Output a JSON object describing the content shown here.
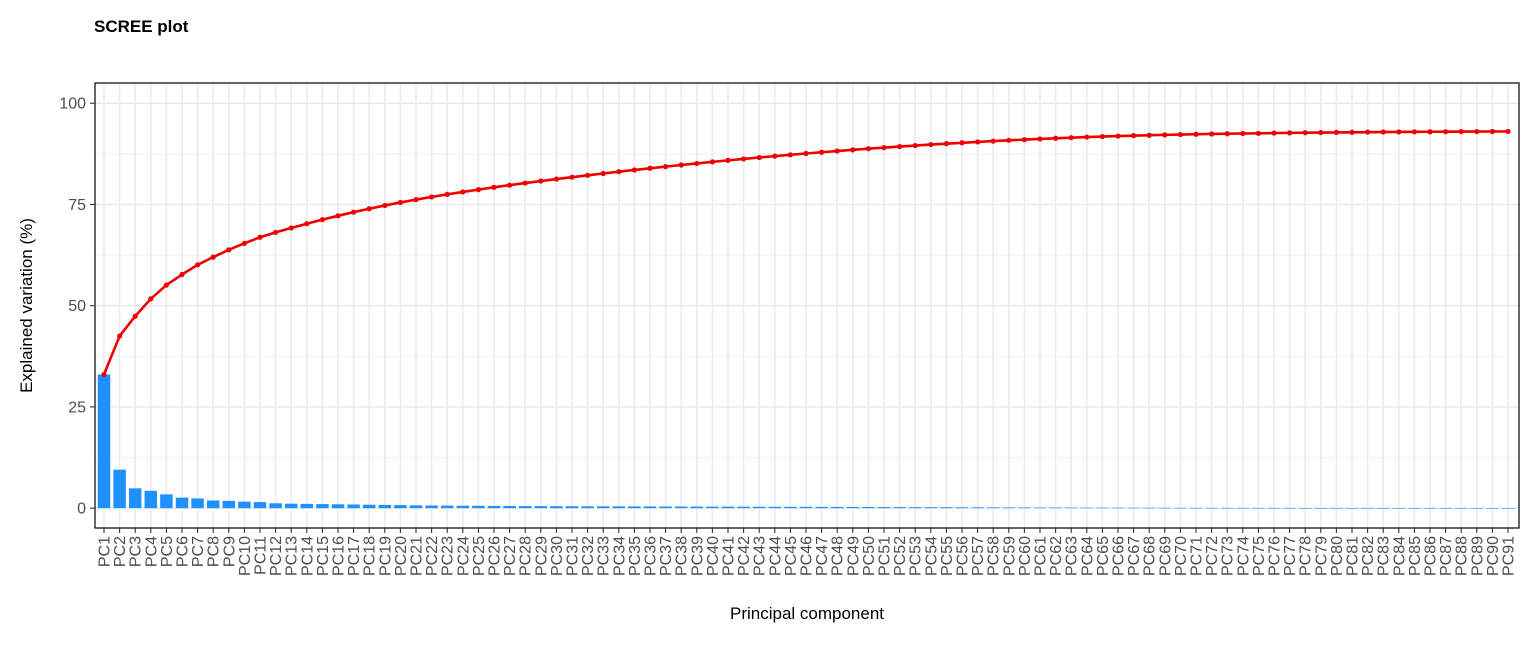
{
  "chart_data": {
    "type": "bar+line",
    "title": "SCREE plot",
    "xlabel": "Principal component",
    "ylabel": "Explained variation (%)",
    "ylim": [
      -4.9,
      105
    ],
    "yticks": [
      0,
      25,
      50,
      75,
      100
    ],
    "grid": true,
    "legend": "none",
    "categories": [
      "PC1",
      "PC2",
      "PC3",
      "PC4",
      "PC5",
      "PC6",
      "PC7",
      "PC8",
      "PC9",
      "PC10",
      "PC11",
      "PC12",
      "PC13",
      "PC14",
      "PC15",
      "PC16",
      "PC17",
      "PC18",
      "PC19",
      "PC20",
      "PC21",
      "PC22",
      "PC23",
      "PC24",
      "PC25",
      "PC26",
      "PC27",
      "PC28",
      "PC29",
      "PC30",
      "PC31",
      "PC32",
      "PC33",
      "PC34",
      "PC35",
      "PC36",
      "PC37",
      "PC38",
      "PC39",
      "PC40",
      "PC41",
      "PC42",
      "PC43",
      "PC44",
      "PC45",
      "PC46",
      "PC47",
      "PC48",
      "PC49",
      "PC50",
      "PC51",
      "PC52",
      "PC53",
      "PC54",
      "PC55",
      "PC56",
      "PC57",
      "PC58",
      "PC59",
      "PC60",
      "PC61",
      "PC62",
      "PC63",
      "PC64",
      "PC65",
      "PC66",
      "PC67",
      "PC68",
      "PC69",
      "PC70",
      "PC71",
      "PC72",
      "PC73",
      "PC74",
      "PC75",
      "PC76",
      "PC77",
      "PC78",
      "PC79",
      "PC80",
      "PC81",
      "PC82",
      "PC83",
      "PC84",
      "PC85",
      "PC86",
      "PC87",
      "PC88",
      "PC89",
      "PC90",
      "PC91"
    ],
    "bar_values": [
      33.0,
      9.5,
      4.9,
      4.3,
      3.4,
      2.6,
      2.4,
      1.9,
      1.8,
      1.6,
      1.5,
      1.2,
      1.1,
      1.05,
      1.0,
      0.95,
      0.9,
      0.85,
      0.8,
      0.75,
      0.7,
      0.66,
      0.63,
      0.6,
      0.58,
      0.56,
      0.54,
      0.52,
      0.5,
      0.48,
      0.47,
      0.46,
      0.45,
      0.44,
      0.43,
      0.42,
      0.41,
      0.4,
      0.39,
      0.38,
      0.37,
      0.36,
      0.35,
      0.34,
      0.33,
      0.32,
      0.31,
      0.3,
      0.29,
      0.28,
      0.27,
      0.26,
      0.25,
      0.24,
      0.23,
      0.22,
      0.21,
      0.2,
      0.19,
      0.18,
      0.17,
      0.16,
      0.15,
      0.14,
      0.13,
      0.12,
      0.11,
      0.1,
      0.09,
      0.08,
      0.07,
      0.07,
      0.06,
      0.06,
      0.05,
      0.05,
      0.05,
      0.04,
      0.04,
      0.04,
      0.03,
      0.03,
      0.03,
      0.03,
      0.02,
      0.02,
      0.02,
      0.02,
      0.01,
      0.01,
      0.01
    ],
    "cumulative_values": [
      33.0,
      42.5,
      47.4,
      51.7,
      55.1,
      57.7,
      60.1,
      62.0,
      63.8,
      65.4,
      66.9,
      68.1,
      69.2,
      70.25,
      71.25,
      72.2,
      73.1,
      73.95,
      74.75,
      75.5,
      76.2,
      76.86,
      77.49,
      78.09,
      78.67,
      79.23,
      79.77,
      80.29,
      80.79,
      81.27,
      81.74,
      82.2,
      82.65,
      83.09,
      83.52,
      83.94,
      84.35,
      84.75,
      85.14,
      85.52,
      85.89,
      86.25,
      86.6,
      86.94,
      87.27,
      87.59,
      87.9,
      88.2,
      88.49,
      88.77,
      89.04,
      89.3,
      89.55,
      89.79,
      90.02,
      90.24,
      90.45,
      90.65,
      90.84,
      91.02,
      91.19,
      91.35,
      91.5,
      91.64,
      91.77,
      91.89,
      92.0,
      92.1,
      92.19,
      92.27,
      92.34,
      92.41,
      92.47,
      92.53,
      92.58,
      92.63,
      92.68,
      92.72,
      92.76,
      92.8,
      92.83,
      92.86,
      92.89,
      92.92,
      92.94,
      92.96,
      92.98,
      93.0,
      93.01,
      93.02,
      93.03
    ],
    "bar_color": "#1E90FF",
    "line_color": "#EE0000"
  }
}
